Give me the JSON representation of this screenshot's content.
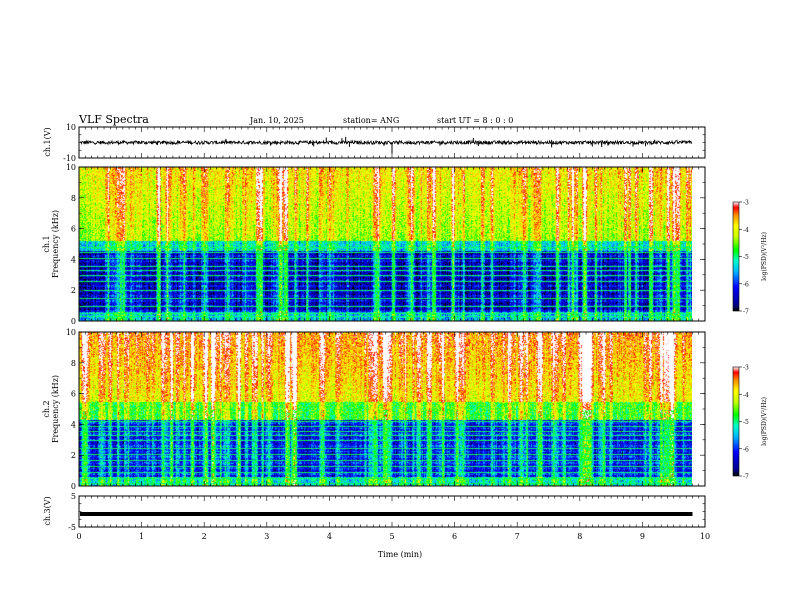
{
  "header": {
    "title": "VLF Spectra",
    "date": "Jan. 10, 2025",
    "station": "station= ANG",
    "start_ut": "start  UT  =   8  : 0   : 0"
  },
  "chart_data": [
    {
      "type": "line",
      "panel": "ch1-waveform",
      "ylabel": "ch.1(V)",
      "ylim": [
        -10,
        10
      ],
      "yticks": [
        {
          "v": 10,
          "label": "10"
        },
        {
          "v": -10,
          "label": "-10"
        }
      ],
      "baseline": 0,
      "xlim": [
        0,
        10
      ],
      "series_end": 9.8,
      "color": "#000000",
      "spikes": [
        {
          "x": 3.75,
          "y": -2.5
        },
        {
          "x": 3.95,
          "y": 3.2
        },
        {
          "x": 4.2,
          "y": 2.8
        },
        {
          "x": 4.26,
          "y": 3.6
        },
        {
          "x": 4.32,
          "y": -2.8
        },
        {
          "x": 5.0,
          "y": -7.0
        },
        {
          "x": 6.3,
          "y": 2.9
        },
        {
          "x": 6.38,
          "y": -2.2
        },
        {
          "x": 7.55,
          "y": -3.2
        },
        {
          "x": 8.2,
          "y": -2.6
        },
        {
          "x": 8.35,
          "y": -3.0
        },
        {
          "x": 8.85,
          "y": -2.6
        },
        {
          "x": 9.05,
          "y": -2.4
        }
      ]
    },
    {
      "type": "heatmap",
      "panel": "ch1-spectrogram",
      "ylabel": "ch.1",
      "ylabel2": "Frequency  (kHz)",
      "ylim": [
        0,
        10
      ],
      "yticks": [
        0,
        2,
        4,
        6,
        8,
        10
      ],
      "xlim": [
        0,
        10
      ],
      "data_end": 9.8,
      "colorbar": {
        "label": "log(PSD)(V²/Hz)",
        "range": [
          -7,
          -3
        ],
        "ticks": [
          -3,
          -4,
          -5,
          -6,
          -7
        ]
      },
      "horizontal_lines_khz": [
        4.8,
        4.45,
        4.1,
        3.6,
        3.3,
        3.0,
        2.6,
        2.0,
        1.5,
        0.95,
        0.55,
        0.3
      ]
    },
    {
      "type": "heatmap",
      "panel": "ch2-spectrogram",
      "ylabel": "ch.2",
      "ylabel2": "Frequency  (kHz)",
      "ylim": [
        0,
        10
      ],
      "yticks": [
        0,
        2,
        4,
        6,
        8,
        10
      ],
      "xlim": [
        0,
        10
      ],
      "data_end": 9.8,
      "colorbar": {
        "label": "log(PSD)(V²/Hz)",
        "range": [
          -7,
          -3
        ],
        "ticks": [
          -3,
          -4,
          -5,
          -6,
          -7
        ]
      },
      "horizontal_lines_khz": [
        4.2,
        3.9,
        3.6,
        3.3,
        3.0,
        2.5,
        2.1,
        1.7,
        1.3,
        0.9,
        0.5,
        0.2
      ]
    },
    {
      "type": "line",
      "panel": "ch3-waveform",
      "ylabel": "ch.3(V)",
      "ylim": [
        -5,
        5
      ],
      "yticks": [
        {
          "v": 5,
          "label": "5"
        },
        {
          "v": -5,
          "label": "-5"
        }
      ],
      "value": -0.8,
      "xlim": [
        0,
        10
      ],
      "series_end": 9.8,
      "xlabel": "Time  (min)",
      "xticks": [
        0,
        1,
        2,
        3,
        4,
        5,
        6,
        7,
        8,
        9,
        10
      ]
    }
  ]
}
